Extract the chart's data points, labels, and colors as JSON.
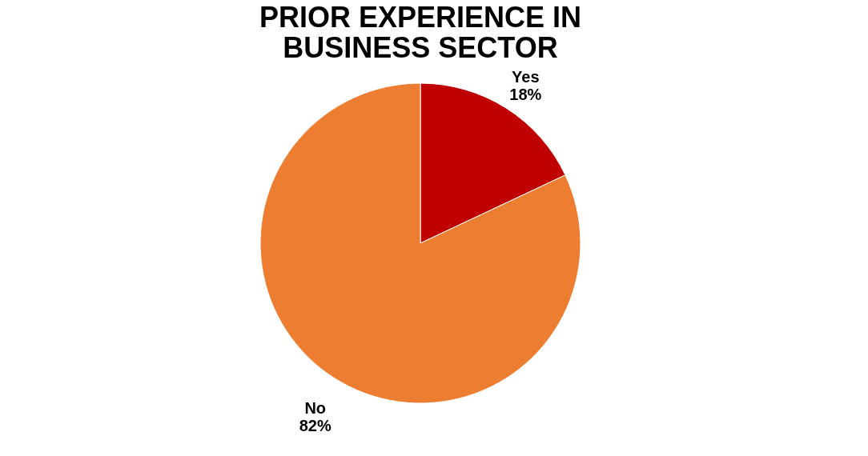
{
  "chart_data": {
    "type": "pie",
    "title": "PRIOR EXPERIENCE IN BUSINESS SECTOR",
    "categories": [
      "Yes",
      "No"
    ],
    "values": [
      18,
      82
    ],
    "colors": [
      "#c00000",
      "#ed7d31"
    ],
    "value_labels": [
      "18%",
      "82%"
    ],
    "legend": false
  }
}
